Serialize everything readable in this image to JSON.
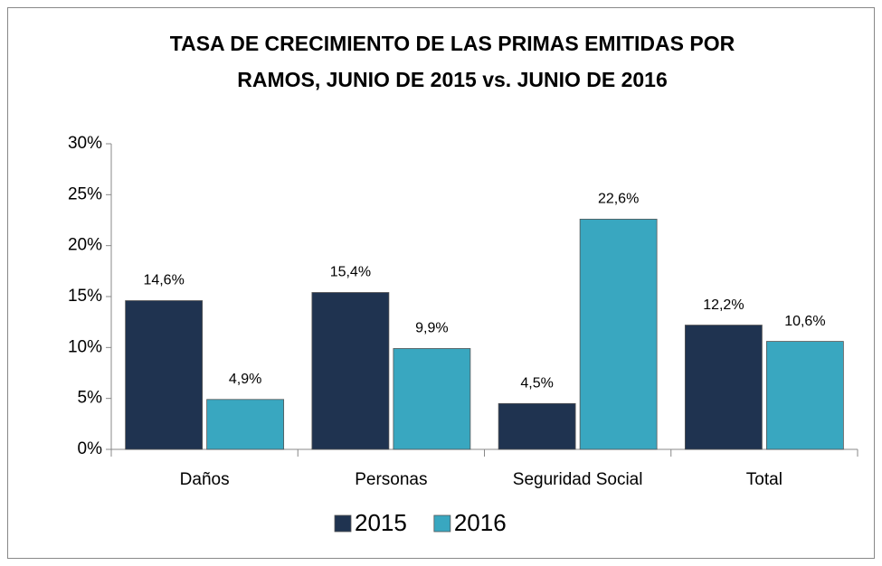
{
  "chart_data": {
    "type": "bar",
    "title": [
      "TASA DE CRECIMIENTO DE LAS PRIMAS EMITIDAS POR",
      "RAMOS, JUNIO DE 2015 vs. JUNIO DE 2016"
    ],
    "categories": [
      "Daños",
      "Personas",
      "Seguridad Social",
      "Total"
    ],
    "series": [
      {
        "name": "2015",
        "color": "#1f3350",
        "values": [
          14.6,
          15.4,
          4.5,
          12.2
        ],
        "value_labels": [
          "14,6%",
          "15,4%",
          "4,5%",
          "12,2%"
        ]
      },
      {
        "name": "2016",
        "color": "#39a7c0",
        "values": [
          4.9,
          9.9,
          22.6,
          10.6
        ],
        "value_labels": [
          "4,9%",
          "9,9%",
          "22,6%",
          "10,6%"
        ]
      }
    ],
    "ylim": [
      0,
      30
    ],
    "yticks": [
      {
        "value": 0,
        "label": "0%"
      },
      {
        "value": 5,
        "label": "5%"
      },
      {
        "value": 10,
        "label": "10%"
      },
      {
        "value": 15,
        "label": "15%"
      },
      {
        "value": 20,
        "label": "20%"
      },
      {
        "value": 25,
        "label": "25%"
      },
      {
        "value": 30,
        "label": "30%"
      }
    ],
    "grid": false,
    "legend": "bottom"
  }
}
